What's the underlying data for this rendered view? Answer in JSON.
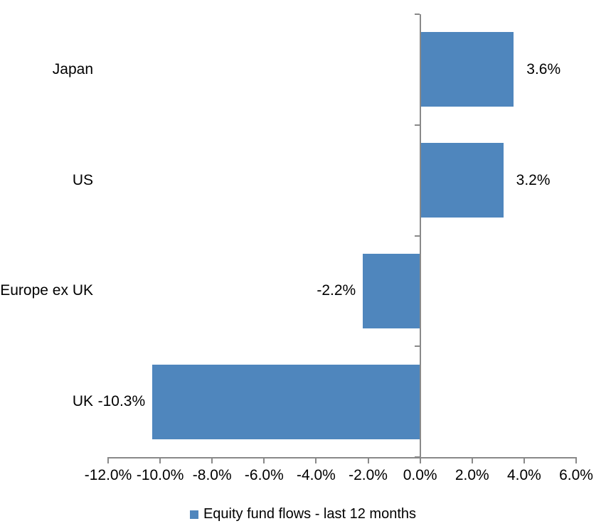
{
  "chart_data": {
    "type": "bar",
    "orientation": "horizontal",
    "title": "",
    "xlabel": "",
    "ylabel": "",
    "categories": [
      "Japan",
      "US",
      "Europe ex UK",
      "UK"
    ],
    "series": [
      {
        "name": "Equity fund flows - last 12 months",
        "values": [
          3.6,
          3.2,
          -2.2,
          -10.3
        ],
        "data_labels": [
          "3.6%",
          "3.2%",
          "-2.2%",
          "-10.3%"
        ]
      }
    ],
    "xlim": [
      -12,
      6
    ],
    "x_tick_step": 2,
    "x_tick_labels": [
      "-12.0%",
      "-10.0%",
      "-8.0%",
      "-6.0%",
      "-4.0%",
      "-2.0%",
      "0.0%",
      "2.0%",
      "4.0%",
      "6.0%"
    ],
    "grid": false,
    "legend_position": "bottom",
    "colors": {
      "bar": "#4F86BD",
      "axis": "#898989",
      "text": "#000000",
      "background": "#FFFFFF"
    }
  },
  "legend": {
    "label": "Equity fund flows - last 12 months",
    "marker_icon": "square-icon"
  }
}
